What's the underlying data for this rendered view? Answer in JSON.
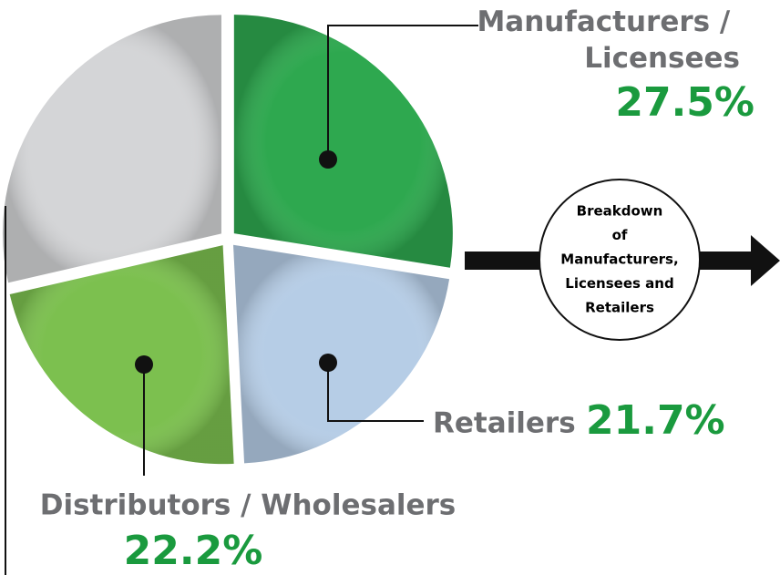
{
  "chart_data": {
    "type": "pie",
    "categories": [
      "Manufacturers / Licensees",
      "Retailers",
      "Distributors / Wholesalers",
      null
    ],
    "values": [
      27.5,
      21.7,
      22.2,
      28.6
    ],
    "value_labels": [
      "27.5%",
      "21.7%",
      "22.2%",
      null
    ],
    "colors": [
      "#2ea84f",
      "#b6cde6",
      "#7cc04f",
      "#d4d5d7"
    ],
    "annotation": [
      "Breakdown",
      "of",
      "Manufacturers,",
      "Licensees and",
      "Retailers"
    ]
  }
}
